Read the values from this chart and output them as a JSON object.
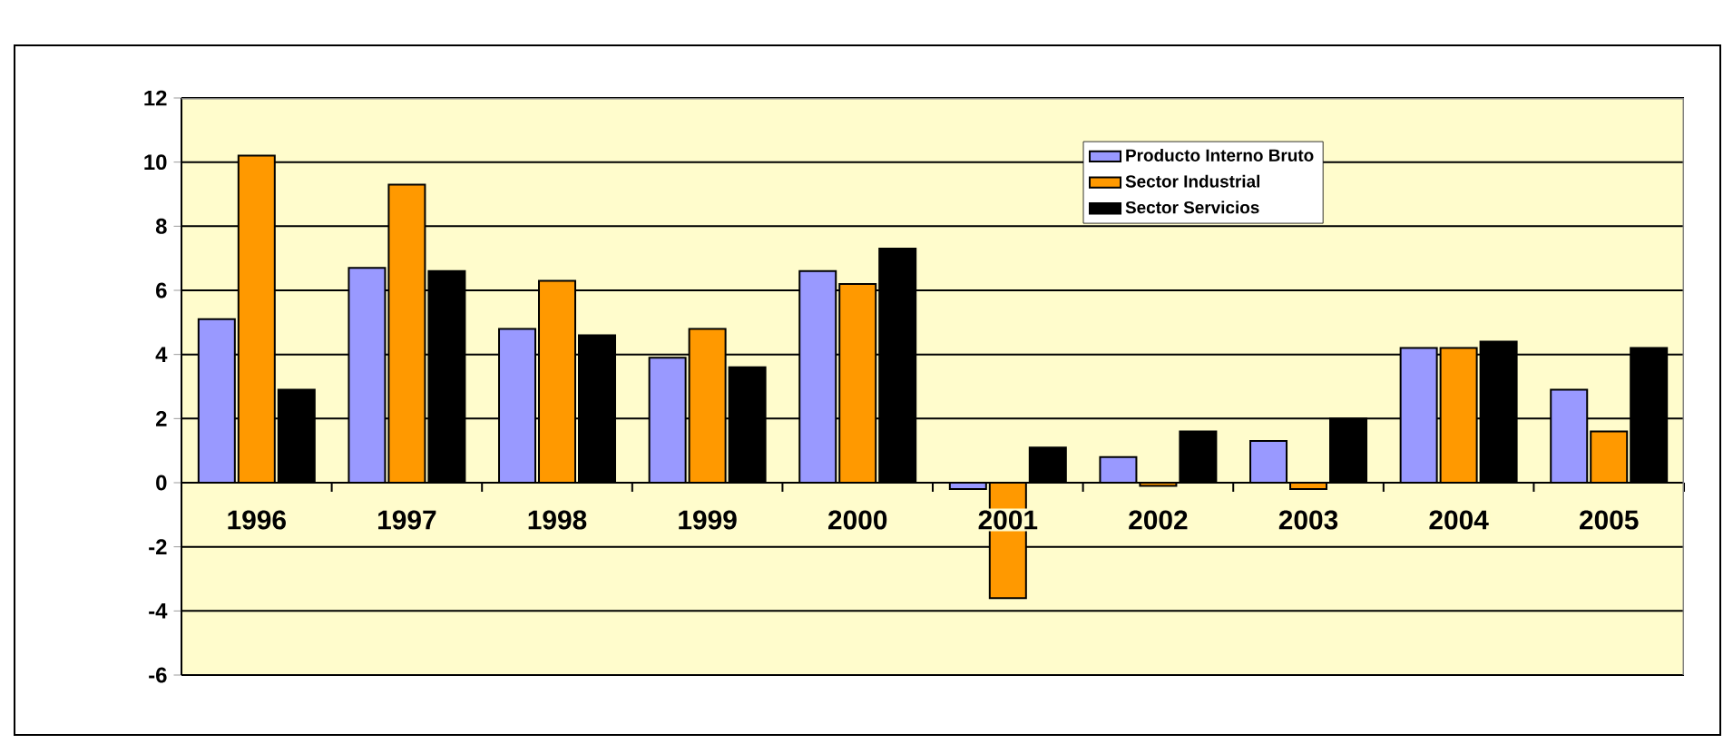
{
  "chart_data": {
    "type": "bar",
    "categories": [
      "1996",
      "1997",
      "1998",
      "1999",
      "2000",
      "2001",
      "2002",
      "2003",
      "2004",
      "2005"
    ],
    "series": [
      {
        "name": "Producto Interno Bruto",
        "color": "#9999ff",
        "values": [
          5.1,
          6.7,
          4.8,
          3.9,
          6.6,
          -0.2,
          0.8,
          1.3,
          4.2,
          2.9
        ]
      },
      {
        "name": "Sector Industrial",
        "color": "#ff9900",
        "values": [
          10.2,
          9.3,
          6.3,
          4.8,
          6.2,
          -3.6,
          -0.1,
          -0.2,
          4.2,
          1.6
        ]
      },
      {
        "name": "Sector Servicios",
        "color": "#000000",
        "values": [
          2.9,
          6.6,
          4.6,
          3.6,
          7.3,
          1.1,
          1.6,
          2.0,
          4.4,
          4.2
        ]
      }
    ],
    "ylim": [
      -6,
      12
    ],
    "yticks": [
      -6,
      -4,
      -2,
      0,
      2,
      4,
      6,
      8,
      10,
      12
    ],
    "grid": "y",
    "legend": "top right"
  }
}
